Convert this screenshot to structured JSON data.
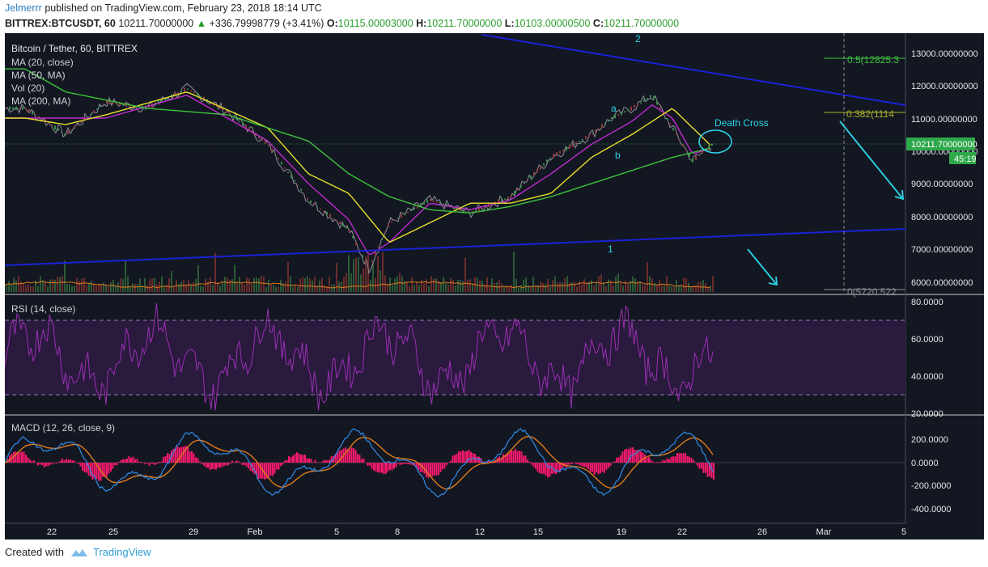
{
  "header": {
    "user": "Jelmerrr",
    "published": " published on TradingView.com, February 23, 2018 18:14 UTC",
    "symbol": "BITTREX:BTCUSDT, 60",
    "price": "10211.70000000",
    "change": "+336.79998779 (+3.41%)",
    "o_label": "O:",
    "o_value": "10115.00003000",
    "h_label": "H:",
    "h_value": "10211.70000000",
    "l_label": "L:",
    "l_value": "10103.00000500",
    "c_label": "C:",
    "c_value": "10211.70000000"
  },
  "main_pane": {
    "title": "Bitcoin / Tether, 60, BITTREX",
    "indicators": [
      "MA (20, close)",
      "MA (50, MA)",
      "Vol (20)",
      "MA (200, MA)"
    ],
    "price_ticks": [
      "13000.00000000",
      "12000.00000000",
      "11000.00000000",
      "10000.00000000",
      "9000.00000000",
      "8000.00000000",
      "7000.00000000",
      "6000.00000000"
    ],
    "last_price_label": "10211.70000000",
    "countdown_label": "45:19",
    "fib_labels": [
      "0.5(12825.3",
      "0.382(1114",
      "0(5720.522"
    ],
    "annotations": {
      "death_cross": "Death Cross",
      "a": "a",
      "b": "b",
      "one": "1",
      "two": "2"
    }
  },
  "rsi_pane": {
    "title": "RSI (14, close)",
    "ticks": [
      "80.0000",
      "60.0000",
      "40.0000",
      "20.0000"
    ]
  },
  "macd_pane": {
    "title": "MACD (12, 26, close, 9)",
    "ticks": [
      "200.0000",
      "0.0000",
      "-200.0000",
      "-400.0000"
    ]
  },
  "time_axis": [
    "22",
    "25",
    "29",
    "Feb",
    "5",
    "8",
    "12",
    "15",
    "19",
    "22",
    "26",
    "Mar",
    "5"
  ],
  "footer": {
    "created": "Created with",
    "brand": "TradingView"
  },
  "colors": {
    "background": "#131722",
    "ma20": "#c02ccf",
    "ma50": "#e8e02a",
    "ma200": "#3dc23d",
    "trendline": "#1a22d6",
    "annotation": "#2ad4e6",
    "rsi": "#9b2fb5",
    "macd": "#2e8de8",
    "signal": "#e07b19",
    "histogram": "#ff1a6e"
  },
  "chart_data": {
    "type": "line",
    "title": "Bitcoin / Tether, 60, BITTREX",
    "x_ticks": [
      "22",
      "25",
      "29",
      "Feb",
      "5",
      "8",
      "12",
      "15",
      "19",
      "22",
      "26",
      "Mar",
      "5"
    ],
    "ylim": [
      5500,
      13500
    ],
    "series": [
      {
        "name": "price",
        "x": [
          "Jan 20",
          "Jan 22",
          "Jan 24",
          "Jan 26",
          "Jan 28",
          "Jan 30",
          "Feb 1",
          "Feb 3",
          "Feb 5",
          "Feb 6",
          "Feb 7",
          "Feb 9",
          "Feb 11",
          "Feb 13",
          "Feb 15",
          "Feb 17",
          "Feb 18",
          "Feb 19",
          "Feb 20",
          "Feb 21",
          "Feb 22",
          "Feb 23"
        ],
        "values": [
          11300,
          10500,
          11500,
          11300,
          11900,
          11200,
          10200,
          8500,
          7600,
          6400,
          7800,
          8500,
          8100,
          8600,
          9800,
          10500,
          11000,
          11300,
          11700,
          10700,
          9700,
          10211.7
        ]
      },
      {
        "name": "MA (20, close)",
        "x": [
          "Jan 20",
          "Jan 24",
          "Jan 28",
          "Feb 1",
          "Feb 3",
          "Feb 5",
          "Feb 6",
          "Feb 7",
          "Feb 9",
          "Feb 11",
          "Feb 13",
          "Feb 15",
          "Feb 17",
          "Feb 19",
          "Feb 20",
          "Feb 21",
          "Feb 22",
          "Feb 23"
        ],
        "values": [
          11000,
          11000,
          11700,
          10300,
          9000,
          7900,
          6800,
          7200,
          8400,
          8200,
          8500,
          9300,
          10200,
          10900,
          11400,
          11000,
          9900,
          10100
        ]
      },
      {
        "name": "MA (50, MA)",
        "x": [
          "Jan 20",
          "Jan 22",
          "Jan 24",
          "Jan 28",
          "Feb 1",
          "Feb 3",
          "Feb 5",
          "Feb 7",
          "Feb 9",
          "Feb 11",
          "Feb 13",
          "Feb 15",
          "Feb 17",
          "Feb 19",
          "Feb 21",
          "Feb 23"
        ],
        "values": [
          11000,
          10800,
          11100,
          11800,
          10700,
          9300,
          8700,
          7200,
          7800,
          8400,
          8400,
          8700,
          9800,
          10500,
          11300,
          10100
        ]
      },
      {
        "name": "MA (200, MA)",
        "x": [
          "Jan 20",
          "Jan 22",
          "Jan 26",
          "Jan 30",
          "Feb 3",
          "Feb 5",
          "Feb 7",
          "Feb 9",
          "Feb 11",
          "Feb 13",
          "Feb 15",
          "Feb 17",
          "Feb 19",
          "Feb 21",
          "Feb 23"
        ],
        "values": [
          12500,
          11800,
          11300,
          11100,
          10300,
          9300,
          8600,
          8200,
          8100,
          8300,
          8600,
          9000,
          9400,
          9800,
          10100
        ]
      }
    ]
  }
}
